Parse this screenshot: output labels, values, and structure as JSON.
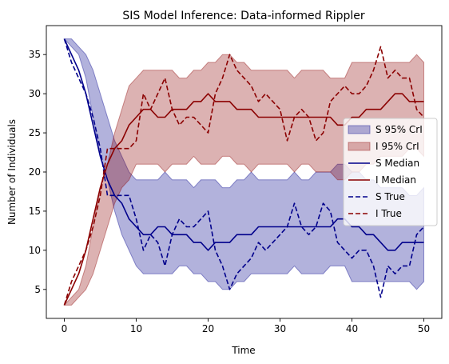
{
  "chart_data": {
    "type": "line",
    "title": "SIS Model Inference: Data-informed Rippler",
    "xlabel": "Time",
    "ylabel": "Number of Individuals",
    "xlim": [
      -2.5,
      52.5
    ],
    "ylim": [
      1.3,
      38.7
    ],
    "xticks": [
      0,
      10,
      20,
      30,
      40,
      50
    ],
    "yticks": [
      5,
      10,
      15,
      20,
      25,
      30,
      35
    ],
    "grid": false,
    "legend_position": "center-right",
    "x": [
      0,
      1,
      2,
      3,
      4,
      5,
      6,
      7,
      8,
      9,
      10,
      11,
      12,
      13,
      14,
      15,
      16,
      17,
      18,
      19,
      20,
      21,
      22,
      23,
      24,
      25,
      26,
      27,
      28,
      29,
      30,
      31,
      32,
      33,
      34,
      35,
      36,
      37,
      38,
      39,
      40,
      41,
      42,
      43,
      44,
      45,
      46,
      47,
      48,
      49,
      50
    ],
    "bands": [
      {
        "name": "S 95% CrI",
        "color": "#00008b",
        "opacity": 0.3,
        "lower": [
          37,
          36,
          35,
          32,
          27,
          22,
          19,
          15,
          12,
          10,
          8,
          7,
          7,
          7,
          7,
          7,
          8,
          8,
          7,
          7,
          6,
          6,
          5,
          5,
          6,
          6,
          7,
          7,
          7,
          7,
          7,
          7,
          8,
          7,
          7,
          7,
          7,
          8,
          8,
          8,
          6,
          6,
          6,
          6,
          6,
          6,
          6,
          6,
          6,
          5,
          6
        ],
        "upper": [
          37,
          37,
          36,
          35,
          33,
          30,
          27,
          24,
          22,
          20,
          19,
          19,
          19,
          19,
          20,
          19,
          19,
          19,
          18,
          19,
          19,
          19,
          18,
          18,
          19,
          19,
          20,
          19,
          19,
          19,
          19,
          19,
          20,
          19,
          19,
          20,
          20,
          20,
          21,
          21,
          20,
          20,
          19,
          19,
          18,
          18,
          18,
          18,
          17,
          17,
          18
        ]
      },
      {
        "name": "I 95% CrI",
        "color": "#8b0000",
        "opacity": 0.3,
        "lower": [
          3,
          3,
          4,
          5,
          7,
          10,
          13,
          16,
          18,
          19,
          21,
          21,
          21,
          21,
          20,
          21,
          21,
          21,
          22,
          21,
          21,
          21,
          22,
          22,
          21,
          21,
          20,
          21,
          21,
          21,
          21,
          21,
          20,
          21,
          21,
          20,
          20,
          20,
          19,
          19,
          20,
          20,
          21,
          21,
          22,
          22,
          22,
          22,
          23,
          23,
          22
        ],
        "upper": [
          3,
          4,
          5,
          8,
          13,
          18,
          21,
          25,
          28,
          31,
          32,
          33,
          33,
          33,
          33,
          33,
          32,
          32,
          33,
          33,
          34,
          34,
          35,
          35,
          34,
          34,
          33,
          33,
          33,
          33,
          33,
          33,
          32,
          33,
          33,
          33,
          33,
          32,
          32,
          32,
          34,
          34,
          34,
          34,
          34,
          34,
          34,
          34,
          34,
          35,
          34
        ]
      }
    ],
    "series": [
      {
        "name": "S Median",
        "color": "#00008b",
        "dashed": false,
        "values": [
          37,
          35,
          33,
          30,
          26,
          22,
          19,
          17,
          16,
          14,
          13,
          12,
          12,
          13,
          13,
          12,
          12,
          12,
          11,
          11,
          10,
          11,
          11,
          11,
          12,
          12,
          12,
          13,
          13,
          13,
          13,
          13,
          13,
          13,
          13,
          13,
          13,
          13,
          14,
          14,
          13,
          13,
          12,
          12,
          11,
          10,
          10,
          11,
          11,
          11,
          11
        ]
      },
      {
        "name": "I Median",
        "color": "#8b0000",
        "dashed": false,
        "values": [
          3,
          5,
          7,
          10,
          14,
          18,
          21,
          23,
          24,
          26,
          27,
          28,
          28,
          27,
          27,
          28,
          28,
          28,
          29,
          29,
          30,
          29,
          29,
          29,
          28,
          28,
          28,
          27,
          27,
          27,
          27,
          27,
          27,
          27,
          27,
          27,
          27,
          27,
          26,
          26,
          27,
          27,
          28,
          28,
          28,
          29,
          30,
          30,
          29,
          29,
          29
        ]
      },
      {
        "name": "S True",
        "color": "#00008b",
        "dashed": true,
        "values": [
          37,
          34,
          32,
          30,
          27,
          23,
          17,
          17,
          17,
          17,
          14,
          10,
          12,
          11,
          8,
          12,
          14,
          13,
          13,
          14,
          15,
          10,
          8,
          5,
          7,
          8,
          9,
          11,
          10,
          11,
          12,
          13,
          16,
          13,
          12,
          13,
          16,
          15,
          11,
          10,
          9,
          10,
          10,
          8,
          4,
          8,
          7,
          8,
          8,
          12,
          13
        ]
      },
      {
        "name": "I True",
        "color": "#8b0000",
        "dashed": true,
        "values": [
          3,
          6,
          8,
          10,
          13,
          17,
          23,
          23,
          23,
          23,
          24,
          30,
          28,
          30,
          32,
          28,
          26,
          27,
          27,
          26,
          25,
          30,
          32,
          35,
          33,
          32,
          31,
          29,
          30,
          29,
          28,
          24,
          27,
          28,
          27,
          24,
          25,
          29,
          30,
          31,
          30,
          30,
          31,
          33,
          36,
          32,
          33,
          32,
          32,
          28,
          27
        ]
      }
    ]
  }
}
